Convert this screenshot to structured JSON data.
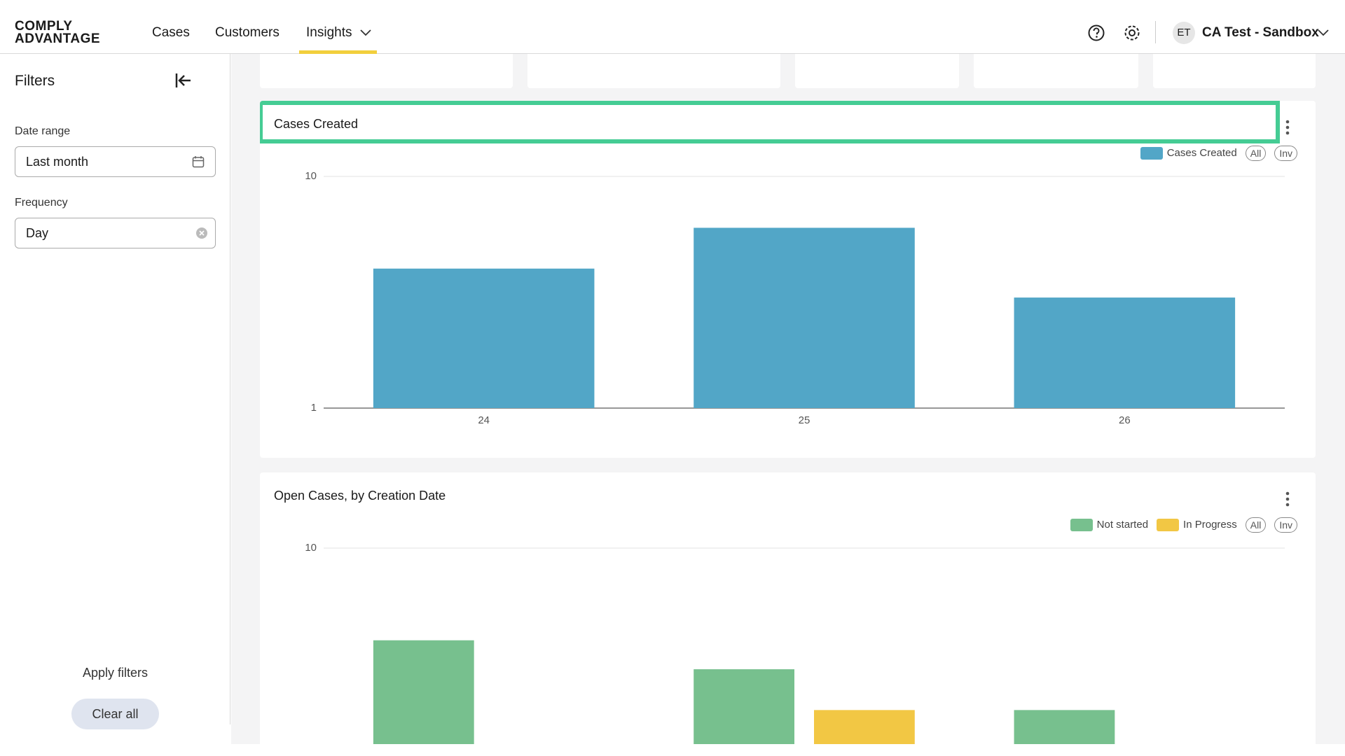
{
  "header": {
    "logo": [
      "COMPLY",
      "ADVANTAGE"
    ],
    "nav": [
      "Cases",
      "Customers",
      "Insights"
    ],
    "user": {
      "initials": "ET",
      "name": "CA Test - Sandbox"
    }
  },
  "filters": {
    "title": "Filters",
    "date_range": {
      "label": "Date range",
      "value": "Last month"
    },
    "frequency": {
      "label": "Frequency",
      "value": "Day"
    },
    "apply": "Apply filters",
    "clear": "Clear all"
  },
  "chart_data": [
    {
      "type": "bar",
      "title": "Cases Created",
      "categories": [
        "24",
        "25",
        "26"
      ],
      "series": [
        {
          "name": "Cases Created",
          "color": "#52a6c7",
          "values": [
            4,
            6,
            3
          ]
        }
      ],
      "ylim": [
        1,
        10
      ],
      "yticks": [
        1,
        10
      ],
      "log_scale": true,
      "grid": true,
      "legend": "top-right",
      "legend_buttons": [
        "All",
        "Inv"
      ]
    },
    {
      "type": "bar",
      "title": "Open Cases, by Creation Date",
      "categories": [
        null,
        null,
        null
      ],
      "series": [
        {
          "name": "Not started",
          "color": "#77c08e",
          "values": [
            4,
            3,
            2
          ]
        },
        {
          "name": "In Progress",
          "color": "#f2c744",
          "values": [
            null,
            2,
            null
          ]
        }
      ],
      "ylim": [
        1,
        10
      ],
      "yticks": [
        10
      ],
      "log_scale": true,
      "grid": true,
      "legend": "top-right",
      "legend_buttons": [
        "All",
        "Inv"
      ]
    }
  ]
}
